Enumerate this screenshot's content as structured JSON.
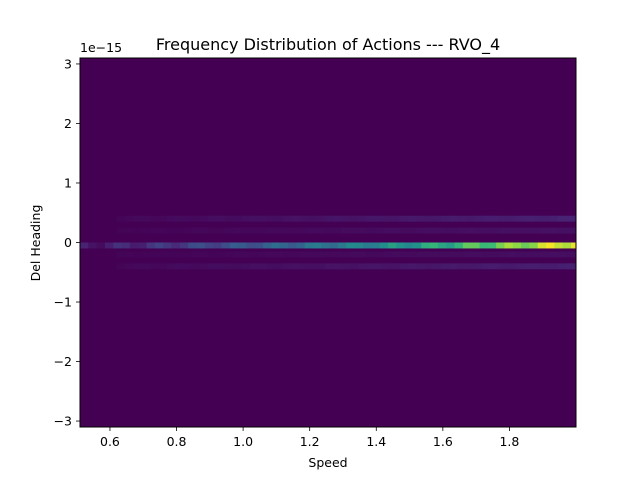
{
  "chart_data": {
    "type": "heatmap",
    "title": "Frequency Distribution of Actions --- RVO_4",
    "xlabel": "Speed",
    "ylabel": "Del Heading",
    "offset_text": "1e−15",
    "xlim": [
      0.51,
      2.0
    ],
    "ylim": [
      -3.1,
      3.1
    ],
    "x_ticks": [
      0.6,
      0.8,
      1.0,
      1.2,
      1.4,
      1.6,
      1.8
    ],
    "x_tick_labels": [
      "0.6",
      "0.8",
      "1.0",
      "1.2",
      "1.4",
      "1.6",
      "1.8"
    ],
    "y_ticks": [
      3,
      2,
      1,
      0,
      -1,
      -2,
      -3
    ],
    "y_tick_labels": [
      "3",
      "2",
      "1",
      "0",
      "−1",
      "−2",
      "−3"
    ],
    "colormap": "viridis",
    "grid": false,
    "background_color": "#440154",
    "bands": [
      {
        "y_from": -0.1,
        "y_to": 0.0,
        "x_from": 0.51,
        "x_to": 2.0,
        "peak": 1.0,
        "min": 0.08,
        "growth": 1.15
      },
      {
        "y_from": 0.35,
        "y_to": 0.45,
        "x_from": 0.62,
        "x_to": 2.0,
        "peak": 0.12,
        "min": 0.02,
        "growth": 1.0
      },
      {
        "y_from": 0.15,
        "y_to": 0.25,
        "x_from": 0.62,
        "x_to": 2.0,
        "peak": 0.06,
        "min": 0.01,
        "growth": 1.0
      },
      {
        "y_from": -0.45,
        "y_to": -0.35,
        "x_from": 0.62,
        "x_to": 2.0,
        "peak": 0.11,
        "min": 0.02,
        "growth": 1.0
      },
      {
        "y_from": -0.25,
        "y_to": -0.15,
        "x_from": 0.62,
        "x_to": 2.0,
        "peak": 0.05,
        "min": 0.01,
        "growth": 1.0
      }
    ]
  }
}
